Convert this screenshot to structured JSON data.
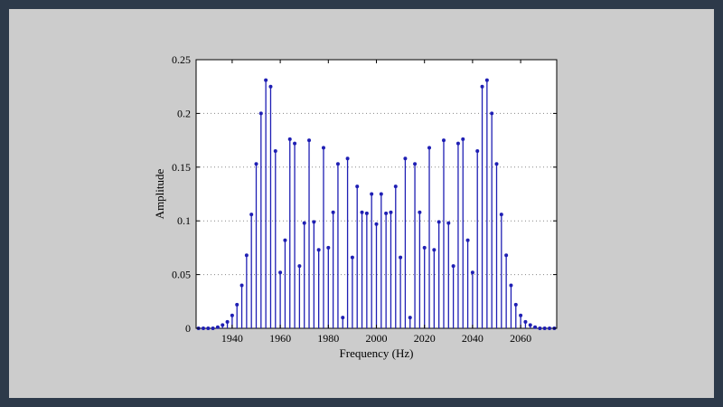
{
  "colors": {
    "frame": "#2d3a4a",
    "slide": "#cccccc",
    "plot_bg": "#ffffff",
    "stem": "#1f1fb4",
    "marker": "#1f1fb4",
    "grid": "#888888"
  },
  "chart_data": {
    "type": "stem",
    "title": "",
    "xlabel": "Frequency (Hz)",
    "ylabel": "Amplitude",
    "xlim": [
      1925,
      2075
    ],
    "ylim": [
      0,
      0.25
    ],
    "grid": true,
    "grid_axis": "y",
    "x_ticks": [
      1940,
      1960,
      1980,
      2000,
      2020,
      2040,
      2060
    ],
    "x_tick_labels": [
      "1940",
      "1960",
      "1980",
      "2000",
      "2020",
      "2040",
      "2060"
    ],
    "y_ticks": [
      0,
      0.05,
      0.1,
      0.15,
      0.2,
      0.25
    ],
    "y_tick_labels": [
      "0",
      "0.05",
      "0.1",
      "0.15",
      "0.2",
      "0.25"
    ],
    "series": [
      {
        "x": [
          1926,
          1928,
          1930,
          1932,
          1934,
          1936,
          1938,
          1940,
          1942,
          1944,
          1946,
          1948,
          1950,
          1952,
          1954,
          1956,
          1958,
          1960,
          1962,
          1964,
          1966,
          1968,
          1970,
          1972,
          1974,
          1976,
          1978,
          1980,
          1982,
          1984,
          1986,
          1988,
          1990,
          1992,
          1994,
          1996,
          1998,
          2000,
          2002,
          2004,
          2006,
          2008,
          2010,
          2012,
          2014,
          2016,
          2018,
          2020,
          2022,
          2024,
          2026,
          2028,
          2030,
          2032,
          2034,
          2036,
          2038,
          2040,
          2042,
          2044,
          2046,
          2048,
          2050,
          2052,
          2054,
          2056,
          2058,
          2060,
          2062,
          2064,
          2066,
          2068,
          2070,
          2072,
          2074
        ],
        "y": [
          0,
          0,
          0,
          0,
          0.001,
          0.003,
          0.006,
          0.012,
          0.022,
          0.04,
          0.068,
          0.106,
          0.153,
          0.2,
          0.231,
          0.225,
          0.165,
          0.052,
          0.082,
          0.176,
          0.172,
          0.058,
          0.098,
          0.175,
          0.099,
          0.073,
          0.168,
          0.075,
          0.108,
          0.153,
          0.01,
          0.158,
          0.066,
          0.132,
          0.108,
          0.107,
          0.125,
          0.097,
          0.125,
          0.107,
          0.108,
          0.132,
          0.066,
          0.158,
          0.01,
          0.153,
          0.108,
          0.075,
          0.168,
          0.073,
          0.099,
          0.175,
          0.098,
          0.058,
          0.172,
          0.176,
          0.082,
          0.052,
          0.165,
          0.225,
          0.231,
          0.2,
          0.153,
          0.106,
          0.068,
          0.04,
          0.022,
          0.012,
          0.006,
          0.003,
          0.001,
          0,
          0,
          0,
          0
        ]
      }
    ]
  }
}
